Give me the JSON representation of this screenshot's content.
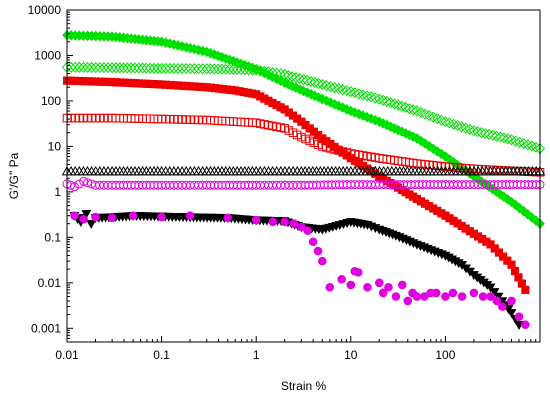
{
  "chart_data": {
    "type": "scatter",
    "title": "",
    "xlabel": "Strain %",
    "ylabel": "G'/G\" Pa",
    "x_scale": "log",
    "y_scale": "log",
    "xlim": [
      0.01,
      1000
    ],
    "ylim": [
      0.0005,
      10000
    ],
    "x_ticks": [
      {
        "value": 0.01,
        "label": "0.01"
      },
      {
        "value": 0.1,
        "label": "0.1"
      },
      {
        "value": 1,
        "label": "1"
      },
      {
        "value": 10,
        "label": "10"
      },
      {
        "value": 100,
        "label": "100"
      }
    ],
    "y_ticks": [
      {
        "value": 0.001,
        "label": "0.001"
      },
      {
        "value": 0.01,
        "label": "0.01"
      },
      {
        "value": 0.1,
        "label": "0.1"
      },
      {
        "value": 1,
        "label": "1"
      },
      {
        "value": 10,
        "label": "10"
      },
      {
        "value": 100,
        "label": "100"
      },
      {
        "value": 1000,
        "label": "1000"
      },
      {
        "value": 10000,
        "label": "10000"
      }
    ],
    "grid": false,
    "legend": "none",
    "series": [
      {
        "marker": "diamond",
        "filled": true,
        "color": "#00e000",
        "x": [
          0.01,
          0.03,
          0.1,
          0.3,
          1,
          2,
          5,
          10,
          20,
          50,
          100,
          200,
          500,
          1000
        ],
        "y": [
          2800,
          2600,
          2000,
          1200,
          500,
          250,
          110,
          60,
          35,
          15,
          6,
          2.2,
          0.6,
          0.2
        ]
      },
      {
        "marker": "diamond",
        "filled": false,
        "color": "#00e000",
        "x": [
          0.01,
          0.03,
          0.1,
          0.3,
          1,
          2,
          5,
          10,
          20,
          50,
          100,
          200,
          500,
          1000
        ],
        "y": [
          550,
          540,
          520,
          510,
          480,
          380,
          230,
          160,
          110,
          60,
          35,
          22,
          14,
          9
        ]
      },
      {
        "marker": "square",
        "filled": true,
        "color": "#ee0000",
        "x": [
          0.01,
          0.03,
          0.1,
          0.3,
          0.6,
          1,
          2,
          3,
          5,
          10,
          20,
          50,
          100,
          200,
          300,
          500,
          700
        ],
        "y": [
          280,
          260,
          230,
          200,
          170,
          140,
          65,
          35,
          15,
          5.5,
          2.2,
          0.7,
          0.3,
          0.12,
          0.07,
          0.025,
          0.007
        ]
      },
      {
        "marker": "square",
        "filled": false,
        "color": "#ee0000",
        "x": [
          0.01,
          0.03,
          0.1,
          0.3,
          1,
          2,
          3,
          5,
          10,
          20,
          50,
          100,
          200,
          500,
          1000
        ],
        "y": [
          42,
          42,
          40,
          38,
          33,
          25,
          16,
          10,
          7,
          5.5,
          4.2,
          3.6,
          3.2,
          2.9,
          2.7
        ]
      },
      {
        "marker": "triangle-up",
        "filled": false,
        "color": "#000000",
        "x": [
          0.01,
          0.03,
          0.1,
          0.3,
          1,
          3,
          10,
          30,
          100,
          300,
          1000
        ],
        "y": [
          2.8,
          2.8,
          2.8,
          2.8,
          2.8,
          2.8,
          2.8,
          2.8,
          2.8,
          2.8,
          2.8
        ]
      },
      {
        "marker": "circle",
        "filled": false,
        "color": "#e000e0",
        "x": [
          0.01,
          0.012,
          0.015,
          0.02,
          0.03,
          0.1,
          0.3,
          1,
          3,
          10,
          30,
          100,
          300,
          1000
        ],
        "y": [
          1.5,
          1.3,
          1.7,
          1.4,
          1.4,
          1.4,
          1.4,
          1.4,
          1.4,
          1.45,
          1.45,
          1.45,
          1.45,
          1.45
        ]
      },
      {
        "marker": "triangle-down",
        "filled": true,
        "color": "#000000",
        "x": [
          0.012,
          0.014,
          0.016,
          0.018,
          0.02,
          0.03,
          0.05,
          0.1,
          0.2,
          0.5,
          1,
          2,
          3,
          5,
          7,
          10,
          15,
          20,
          30,
          50,
          100,
          150,
          200,
          300,
          400,
          500,
          600
        ],
        "y": [
          0.3,
          0.22,
          0.33,
          0.2,
          0.27,
          0.28,
          0.3,
          0.29,
          0.28,
          0.27,
          0.24,
          0.23,
          0.17,
          0.15,
          0.18,
          0.22,
          0.19,
          0.15,
          0.11,
          0.07,
          0.04,
          0.025,
          0.015,
          0.008,
          0.004,
          0.0022,
          0.0012
        ]
      },
      {
        "marker": "circle",
        "filled": true,
        "color": "#e000e0",
        "x": [
          0.012,
          0.015,
          0.02,
          0.03,
          0.05,
          0.1,
          0.2,
          0.5,
          1,
          1.5,
          2,
          2.5,
          3,
          3.5,
          4,
          4.5,
          5,
          6,
          8,
          10,
          11,
          12,
          15,
          20,
          22,
          25,
          30,
          35,
          40,
          45,
          50,
          60,
          70,
          80,
          100,
          120,
          150,
          200,
          250,
          300,
          350,
          400,
          500,
          600,
          700
        ],
        "y": [
          0.3,
          0.25,
          0.28,
          0.27,
          0.3,
          0.28,
          0.3,
          0.27,
          0.24,
          0.22,
          0.22,
          0.2,
          0.17,
          0.14,
          0.08,
          0.05,
          0.03,
          0.008,
          0.012,
          0.009,
          0.018,
          0.017,
          0.008,
          0.01,
          0.006,
          0.008,
          0.005,
          0.009,
          0.004,
          0.006,
          0.005,
          0.005,
          0.006,
          0.006,
          0.005,
          0.006,
          0.005,
          0.006,
          0.005,
          0.005,
          0.004,
          0.003,
          0.004,
          0.0018,
          0.0012
        ]
      }
    ]
  }
}
